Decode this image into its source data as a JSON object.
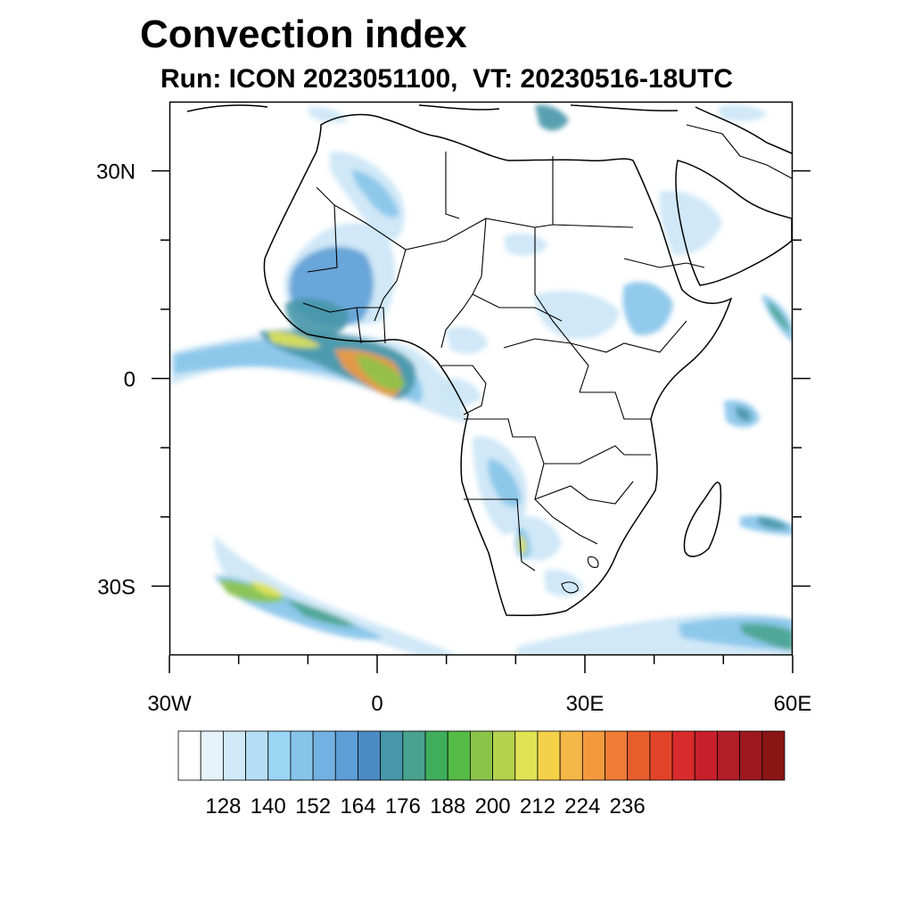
{
  "title": "Convection index",
  "subtitle": "Run: ICON 2023051100,  VT: 20230516-18UTC",
  "map": {
    "lon_range": [
      -30,
      60
    ],
    "lat_range": [
      -40,
      40
    ],
    "x_ticks": [
      {
        "value": -30,
        "label": "30W"
      },
      {
        "value": 0,
        "label": "0"
      },
      {
        "value": 30,
        "label": "30E"
      },
      {
        "value": 60,
        "label": "60E"
      }
    ],
    "y_ticks": [
      {
        "value": 30,
        "label": "30N"
      },
      {
        "value": 0,
        "label": "0"
      },
      {
        "value": -30,
        "label": "30S"
      }
    ],
    "minor_lon_ticks": [
      -20,
      -10,
      10,
      20,
      40,
      50
    ],
    "minor_lat_ticks": [
      20,
      10,
      -10,
      -20
    ]
  },
  "colorbar": {
    "colors": [
      "#ffffff",
      "#e6f3fb",
      "#cfe9f7",
      "#b5def4",
      "#9ad5f3",
      "#86c4ea",
      "#73b1e2",
      "#5e9ed6",
      "#4b8bc4",
      "#4796a9",
      "#48a38e",
      "#3fae5b",
      "#55bb47",
      "#8cc44a",
      "#b5d24e",
      "#e1e355",
      "#f5d149",
      "#f5b748",
      "#f39a3f",
      "#ef7c35",
      "#e85e2d",
      "#e14429",
      "#d82b2b",
      "#c7202a",
      "#b31d26",
      "#9c1a1f",
      "#8a1515"
    ],
    "labels": [
      "128",
      "140",
      "152",
      "164",
      "176",
      "188",
      "200",
      "212",
      "224",
      "236"
    ]
  },
  "field_colors": {
    "light": "#cbe6f6",
    "blue": "#86c4ea",
    "mid": "#5e9ed6",
    "teal": "#4796a9",
    "green": "#48a38e",
    "lime": "#8cc44a",
    "yellow": "#e1e355",
    "orange": "#f39a3f",
    "red": "#e85e2d"
  }
}
